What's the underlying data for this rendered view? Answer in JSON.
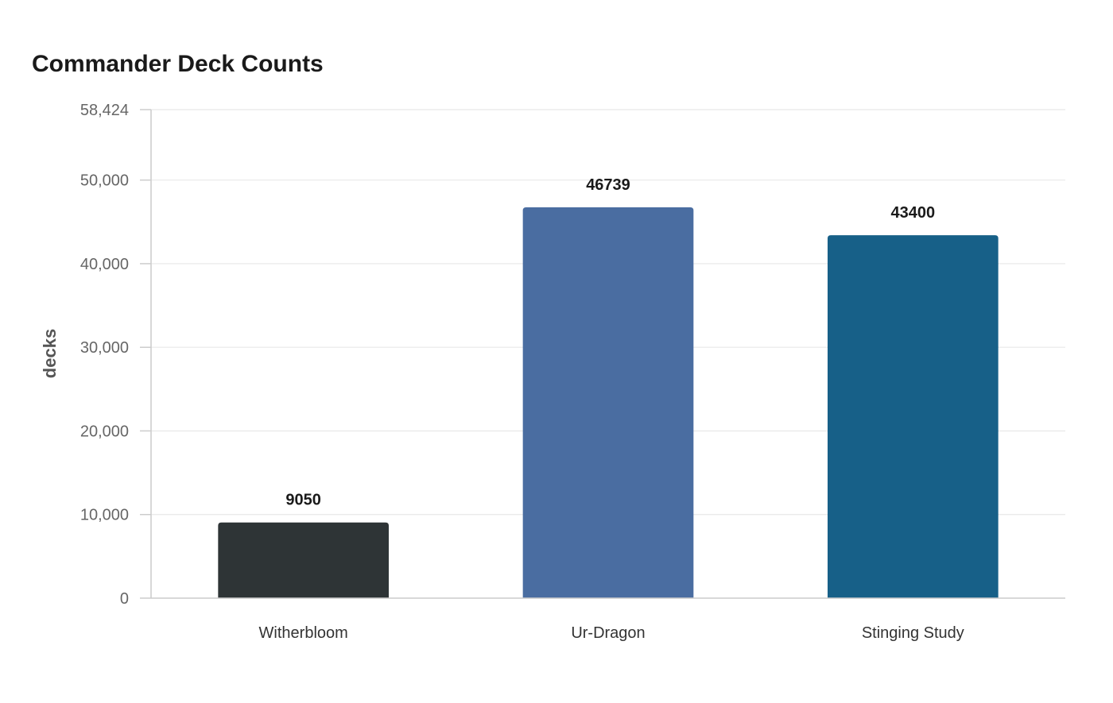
{
  "chart_data": {
    "type": "bar",
    "title": "Commander Deck Counts",
    "xlabel": "",
    "ylabel": "decks",
    "categories": [
      "Witherbloom",
      "Ur-Dragon",
      "Stinging Study"
    ],
    "values": [
      9050,
      46739,
      43400
    ],
    "data_labels": [
      "9050",
      "46739",
      "43400"
    ],
    "colors": [
      "#2e3436",
      "#4a6da1",
      "#176088"
    ],
    "ylim": [
      0,
      58424
    ],
    "yticks": [
      0,
      10000,
      20000,
      30000,
      40000,
      50000,
      58424
    ],
    "ytick_labels": [
      "0",
      "10,000",
      "20,000",
      "30,000",
      "40,000",
      "50,000",
      "58,424"
    ],
    "grid": true,
    "legend": "none"
  }
}
